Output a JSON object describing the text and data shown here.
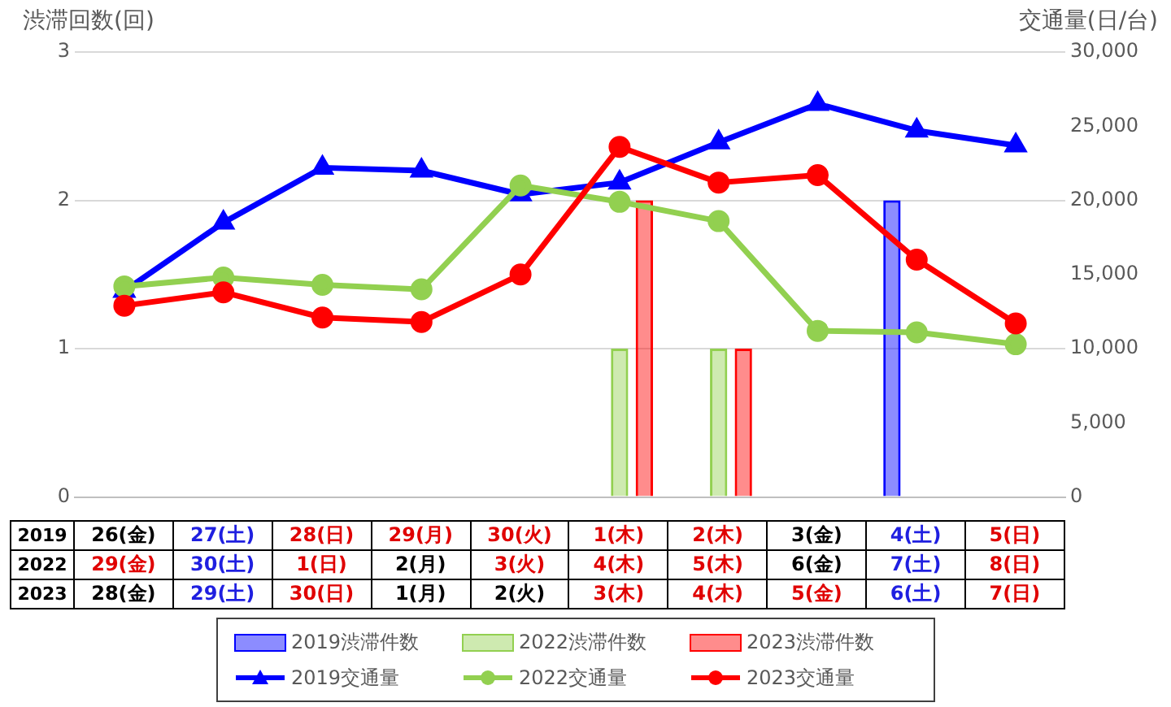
{
  "chart_data": {
    "type": "bar",
    "ylabel": "渋滞回数(回)",
    "y2label": "交通量(日/台)",
    "categories": [
      "26(金)\n29(金)\n28(金)",
      "27(土)\n30(土)\n29(土)",
      "28(日)\n1(日)\n30(日)",
      "29(月)\n2(月)\n1(月)",
      "30(火)\n3(火)\n2(火)",
      "1(木)\n4(木)\n3(木)",
      "2(木)\n5(木)\n4(木)",
      "3(金)\n6(金)\n5(金)",
      "4(土)\n7(土)\n6(土)",
      "5(日)\n8(日)\n7(日)"
    ],
    "annotations": [
      "2019",
      "2022",
      "2023"
    ],
    "series": [
      {
        "name": "2019渋滞件数",
        "axis": "y",
        "color": "#0000ff",
        "values": [
          0,
          0,
          0,
          0,
          0,
          0,
          0,
          0,
          2,
          0
        ]
      },
      {
        "name": "2022渋滞件数",
        "axis": "y",
        "color": "#92d050",
        "values": [
          0,
          0,
          0,
          0,
          0,
          1,
          1,
          0,
          0,
          0
        ]
      },
      {
        "name": "2023渋滞件数",
        "axis": "y",
        "color": "#ff0000",
        "values": [
          0,
          0,
          0,
          0,
          0,
          2,
          1,
          0,
          0,
          0
        ]
      },
      {
        "name": "2019交通量",
        "type": "line",
        "axis": "y2",
        "color": "#0000ff",
        "marker": "triangle",
        "values": [
          13900,
          18500,
          22200,
          22000,
          20400,
          21200,
          23900,
          26500,
          24700,
          23700
        ]
      },
      {
        "name": "2022交通量",
        "type": "line",
        "axis": "y2",
        "color": "#92d050",
        "marker": "circle",
        "values": [
          14200,
          14800,
          14300,
          14000,
          21000,
          19900,
          18600,
          11200,
          11100,
          10300
        ]
      },
      {
        "name": "2023交通量",
        "type": "line",
        "axis": "y2",
        "color": "#ff0000",
        "marker": "circle",
        "values": [
          12900,
          13800,
          12100,
          11800,
          15000,
          23600,
          21200,
          21700,
          16000,
          11700
        ]
      }
    ],
    "ylim": [
      0,
      3
    ],
    "yticks": [
      0,
      1,
      2,
      3
    ],
    "y2lim": [
      0,
      30000
    ],
    "y2ticks": [
      0,
      {
        "value": 5000,
        "label": "5,000"
      },
      {
        "value": 10000,
        "label": "10,000"
      },
      {
        "value": 15000,
        "label": "15,000"
      },
      {
        "value": 20000,
        "label": "20,000"
      },
      {
        "value": 25000,
        "label": "25,000"
      },
      {
        "value": 30000,
        "label": "30,000"
      }
    ],
    "grid": "y",
    "legend": "bottom"
  }
}
